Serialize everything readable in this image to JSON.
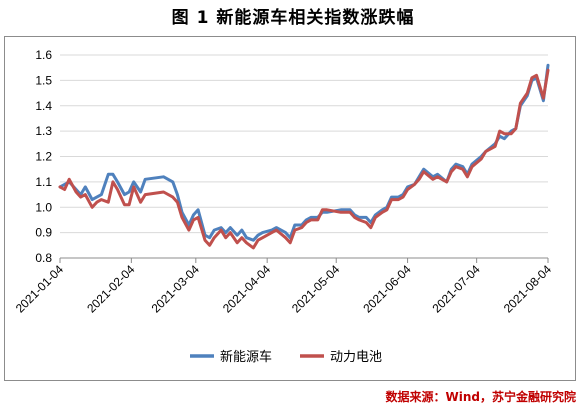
{
  "chart_data": {
    "type": "line",
    "title": "图 1  新能源车相关指数涨跌幅",
    "ylim": [
      0.8,
      1.6
    ],
    "yticks": [
      "0.8",
      "0.9",
      "1.0",
      "1.1",
      "1.2",
      "1.3",
      "1.4",
      "1.5",
      "1.6"
    ],
    "xticks": [
      {
        "label": "2021-01-04",
        "date": "2021-01-04"
      },
      {
        "label": "2021-02-04",
        "date": "2021-02-04"
      },
      {
        "label": "2021-03-04",
        "date": "2021-03-04"
      },
      {
        "label": "2021-04-04",
        "date": "2021-04-04"
      },
      {
        "label": "2021-05-04",
        "date": "2021-05-04"
      },
      {
        "label": "2021-06-04",
        "date": "2021-06-04"
      },
      {
        "label": "2021-07-04",
        "date": "2021-07-04"
      },
      {
        "label": "2021-08-04",
        "date": "2021-08-04"
      }
    ],
    "x": [
      "2021-01-04",
      "2021-01-06",
      "2021-01-08",
      "2021-01-11",
      "2021-01-13",
      "2021-01-15",
      "2021-01-18",
      "2021-01-20",
      "2021-01-22",
      "2021-01-25",
      "2021-01-27",
      "2021-01-29",
      "2021-02-01",
      "2021-02-03",
      "2021-02-05",
      "2021-02-08",
      "2021-02-10",
      "2021-02-18",
      "2021-02-22",
      "2021-02-24",
      "2021-02-26",
      "2021-03-01",
      "2021-03-03",
      "2021-03-05",
      "2021-03-08",
      "2021-03-10",
      "2021-03-12",
      "2021-03-15",
      "2021-03-17",
      "2021-03-19",
      "2021-03-22",
      "2021-03-24",
      "2021-03-26",
      "2021-03-29",
      "2021-03-31",
      "2021-04-02",
      "2021-04-06",
      "2021-04-08",
      "2021-04-12",
      "2021-04-14",
      "2021-04-16",
      "2021-04-19",
      "2021-04-21",
      "2021-04-23",
      "2021-04-26",
      "2021-04-28",
      "2021-04-30",
      "2021-05-06",
      "2021-05-10",
      "2021-05-12",
      "2021-05-14",
      "2021-05-17",
      "2021-05-19",
      "2021-05-21",
      "2021-05-24",
      "2021-05-26",
      "2021-05-28",
      "2021-05-31",
      "2021-06-02",
      "2021-06-04",
      "2021-06-07",
      "2021-06-09",
      "2021-06-11",
      "2021-06-15",
      "2021-06-17",
      "2021-06-21",
      "2021-06-23",
      "2021-06-25",
      "2021-06-28",
      "2021-06-30",
      "2021-07-02",
      "2021-07-06",
      "2021-07-08",
      "2021-07-12",
      "2021-07-14",
      "2021-07-16",
      "2021-07-19",
      "2021-07-21",
      "2021-07-23",
      "2021-07-26",
      "2021-07-28",
      "2021-07-30",
      "2021-08-02",
      "2021-08-04"
    ],
    "series": [
      {
        "name": "新能源车",
        "color": "#4f81bd",
        "values": [
          1.08,
          1.09,
          1.1,
          1.07,
          1.05,
          1.08,
          1.03,
          1.04,
          1.05,
          1.13,
          1.13,
          1.1,
          1.05,
          1.06,
          1.1,
          1.06,
          1.11,
          1.12,
          1.1,
          1.05,
          0.98,
          0.93,
          0.97,
          0.99,
          0.89,
          0.88,
          0.91,
          0.92,
          0.9,
          0.92,
          0.89,
          0.91,
          0.88,
          0.87,
          0.89,
          0.9,
          0.91,
          0.92,
          0.9,
          0.88,
          0.93,
          0.93,
          0.95,
          0.96,
          0.96,
          0.98,
          0.98,
          0.99,
          0.99,
          0.97,
          0.96,
          0.96,
          0.94,
          0.97,
          0.99,
          1.0,
          1.04,
          1.04,
          1.05,
          1.08,
          1.09,
          1.12,
          1.15,
          1.12,
          1.13,
          1.1,
          1.15,
          1.17,
          1.16,
          1.13,
          1.17,
          1.2,
          1.22,
          1.25,
          1.28,
          1.27,
          1.3,
          1.31,
          1.4,
          1.44,
          1.5,
          1.51,
          1.42,
          1.56
        ]
      },
      {
        "name": "动力电池",
        "color": "#c0504d",
        "values": [
          1.08,
          1.07,
          1.11,
          1.06,
          1.04,
          1.05,
          1.0,
          1.02,
          1.03,
          1.02,
          1.1,
          1.07,
          1.01,
          1.01,
          1.08,
          1.02,
          1.05,
          1.06,
          1.04,
          1.02,
          0.96,
          0.91,
          0.95,
          0.96,
          0.87,
          0.85,
          0.88,
          0.91,
          0.88,
          0.9,
          0.86,
          0.88,
          0.86,
          0.84,
          0.87,
          0.88,
          0.9,
          0.91,
          0.88,
          0.86,
          0.91,
          0.92,
          0.94,
          0.95,
          0.95,
          0.99,
          0.99,
          0.98,
          0.98,
          0.96,
          0.95,
          0.94,
          0.92,
          0.96,
          0.98,
          0.99,
          1.03,
          1.03,
          1.04,
          1.07,
          1.09,
          1.11,
          1.14,
          1.11,
          1.12,
          1.1,
          1.14,
          1.16,
          1.15,
          1.12,
          1.16,
          1.19,
          1.22,
          1.24,
          1.3,
          1.29,
          1.29,
          1.31,
          1.41,
          1.45,
          1.51,
          1.52,
          1.43,
          1.54
        ]
      }
    ],
    "legend_position": "bottom",
    "grid": "horizontal"
  },
  "source_text": "数据来源：Wind，苏宁金融研究院"
}
